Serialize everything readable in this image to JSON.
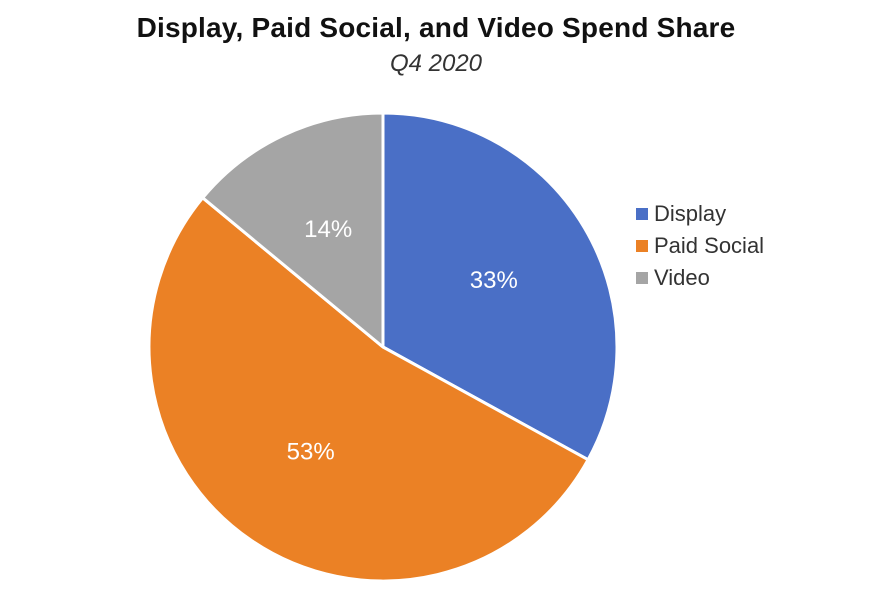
{
  "chart_data": {
    "type": "pie",
    "title": "Display, Paid Social, and Video Spend Share",
    "subtitle": "Q4 2020",
    "categories": [
      "Display",
      "Paid Social",
      "Video"
    ],
    "values": [
      33,
      53,
      14
    ],
    "labels": [
      "33%",
      "53%",
      "14%"
    ],
    "colors": [
      "#4A6FC6",
      "#EB8125",
      "#A5A5A5"
    ],
    "legend_position": "right",
    "start_angle": "12 o'clock",
    "direction": "clockwise"
  }
}
